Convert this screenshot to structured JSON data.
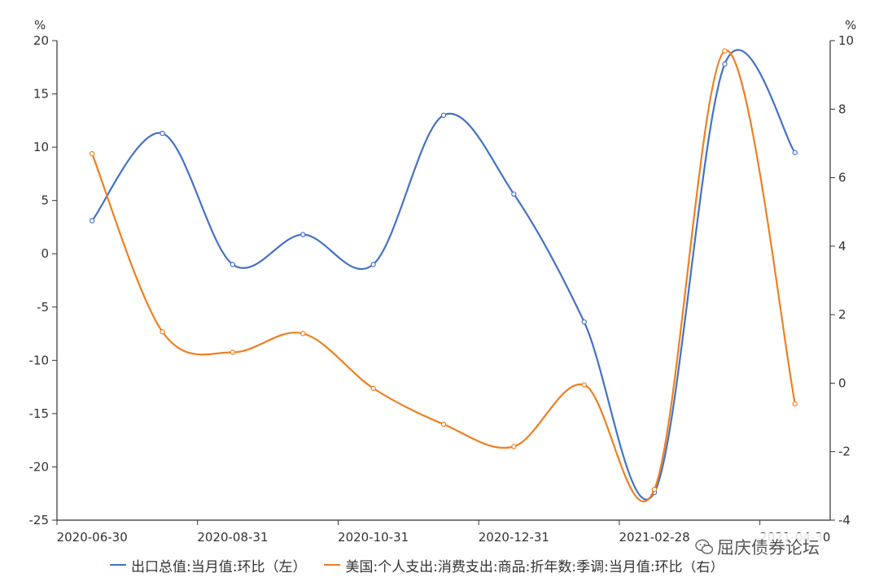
{
  "chart_data": {
    "type": "line",
    "categories": [
      "2020-06-30",
      "2020-07-31",
      "2020-08-31",
      "2020-09-30",
      "2020-10-31",
      "2020-11-30",
      "2020-12-31",
      "2021-01-31",
      "2021-02-28",
      "2021-03-31",
      "2021-04-30"
    ],
    "x_tick_labels": [
      "2020-06-30",
      "2020-08-31",
      "2020-10-31",
      "2020-12-31",
      "2021-02-28",
      "2021-04-30"
    ],
    "y_left": {
      "unit": "%",
      "ylim": [
        -25,
        20
      ],
      "ticks": [
        20,
        15,
        10,
        5,
        0,
        -5,
        -10,
        -15,
        -20,
        -25
      ]
    },
    "y_right": {
      "unit": "%",
      "ylim": [
        -4,
        10
      ],
      "ticks": [
        10,
        8,
        6,
        4,
        2,
        0,
        -2,
        -4
      ]
    },
    "grid": false,
    "legend_position": "bottom",
    "series": [
      {
        "name": "出口总值:当月值:环比（左）",
        "axis": "left",
        "color": "#4472C4",
        "values": [
          3.1,
          11.3,
          -1.0,
          1.8,
          -1.0,
          13.0,
          5.6,
          -6.4,
          -22.4,
          17.8,
          9.5
        ]
      },
      {
        "name": "美国:个人支出:消费支出:商品:折年数:季调:当月值:环比（右）",
        "axis": "right",
        "color": "#F07F1F",
        "values": [
          6.7,
          1.5,
          0.9,
          1.45,
          -0.15,
          -1.2,
          -1.85,
          -0.05,
          -3.1,
          9.7,
          -0.6
        ]
      }
    ]
  },
  "watermark": {
    "text": "屈庆债券论坛",
    "icon": "wechat-icon"
  }
}
